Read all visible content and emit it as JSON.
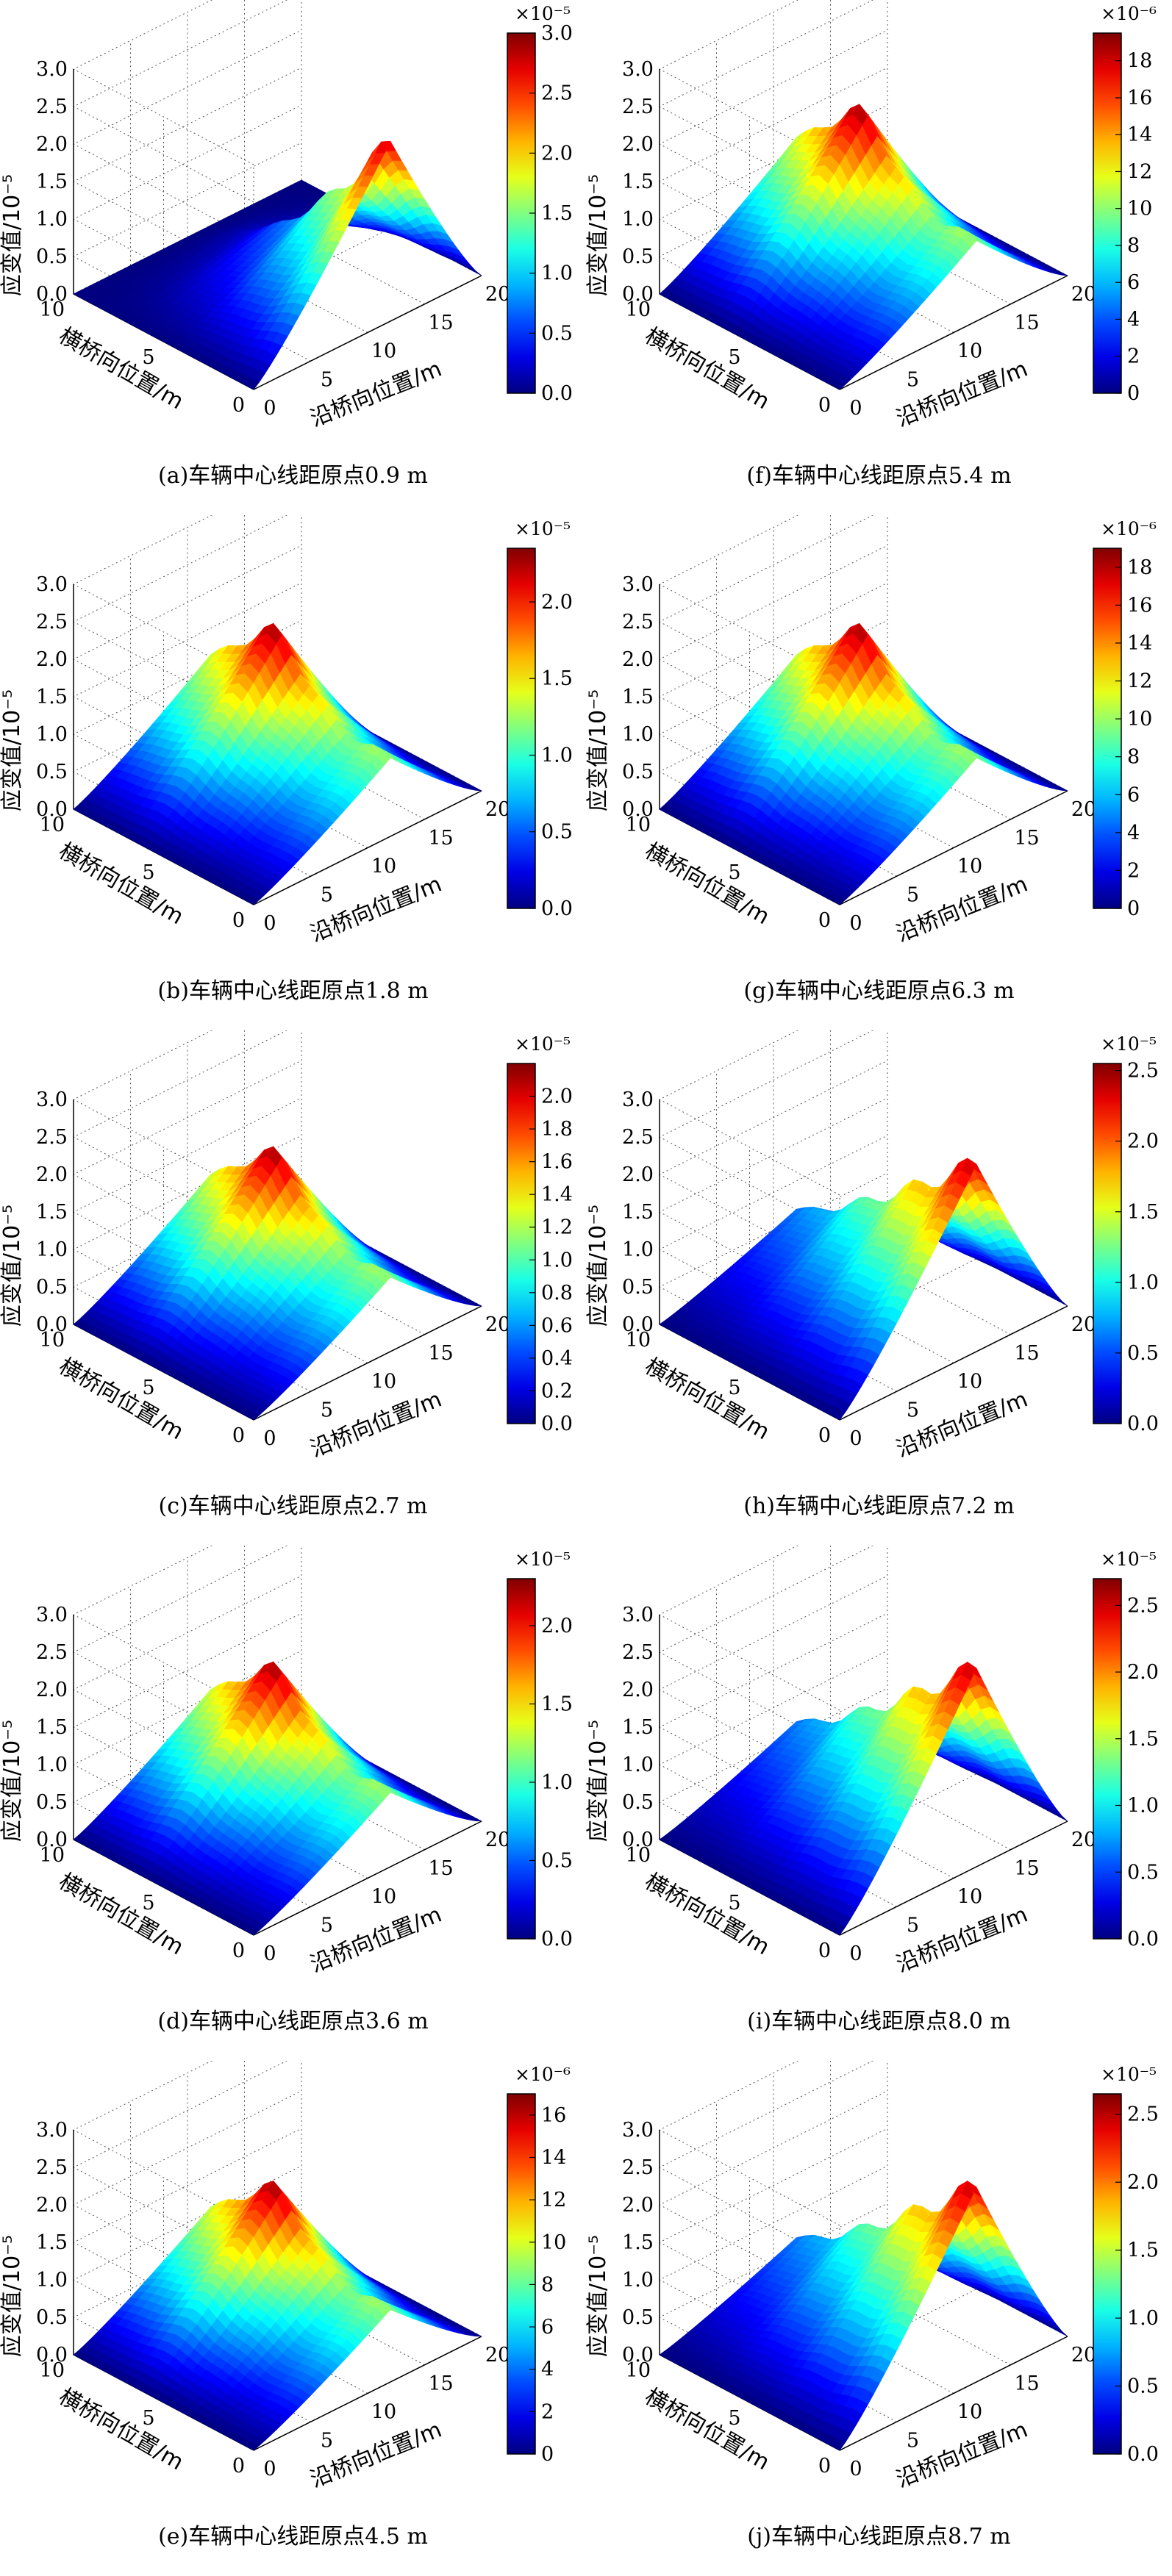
{
  "common": {
    "z_axis_label": "应变值/10⁻⁵",
    "x_axis_label": "沿桥向位置/m",
    "y_axis_label": "横桥向位置/m",
    "z_ticks": [
      "0.0",
      "0.5",
      "1.0",
      "1.5",
      "2.0",
      "2.5",
      "3.0"
    ],
    "x_ticks": [
      "0",
      "5",
      "10",
      "15",
      "20"
    ],
    "y_ticks": [
      "10",
      "5",
      "0"
    ],
    "colormap": [
      "#00008f",
      "#0000ff",
      "#00ffff",
      "#ffff00",
      "#ff0000",
      "#800000"
    ]
  },
  "chart_data": [
    {
      "id": "a",
      "type": "surface3d",
      "caption": "(a)车辆中心线距原点0.9 m",
      "colorbar": {
        "exponent": "×10⁻⁵",
        "ticks": [
          "0.0",
          "0.5",
          "1.0",
          "1.5",
          "2.0",
          "2.5",
          "3.0"
        ],
        "max": 3.0
      },
      "zlim": [
        0,
        3
      ],
      "xlim": [
        0,
        20
      ],
      "ylim": [
        0,
        10
      ],
      "peak_x": 12,
      "peak_value": 2.4
    },
    {
      "id": "b",
      "type": "surface3d",
      "caption": "(b)车辆中心线距原点1.8 m",
      "colorbar": {
        "exponent": "×10⁻⁵",
        "ticks": [
          "0.0",
          "0.5",
          "1.0",
          "1.5",
          "2.0"
        ],
        "max": 2.35
      },
      "zlim": [
        0,
        3
      ],
      "xlim": [
        0,
        20
      ],
      "ylim": [
        0,
        10
      ],
      "peak_x": 12,
      "peak_value": 1.9
    },
    {
      "id": "c",
      "type": "surface3d",
      "caption": "(c)车辆中心线距原点2.7 m",
      "colorbar": {
        "exponent": "×10⁻⁵",
        "ticks": [
          "0.0",
          "0.2",
          "0.4",
          "0.6",
          "0.8",
          "1.0",
          "1.2",
          "1.4",
          "1.6",
          "1.8",
          "2.0"
        ],
        "max": 2.2
      },
      "zlim": [
        0,
        3
      ],
      "xlim": [
        0,
        20
      ],
      "ylim": [
        0,
        10
      ],
      "peak_x": 12,
      "peak_value": 1.8
    },
    {
      "id": "d",
      "type": "surface3d",
      "caption": "(d)车辆中心线距原点3.6 m",
      "colorbar": {
        "exponent": "×10⁻⁵",
        "ticks": [
          "0.0",
          "0.5",
          "1.0",
          "1.5",
          "2.0"
        ],
        "max": 2.3
      },
      "zlim": [
        0,
        3
      ],
      "xlim": [
        0,
        20
      ],
      "ylim": [
        0,
        10
      ],
      "peak_x": 12,
      "peak_value": 1.8
    },
    {
      "id": "e",
      "type": "surface3d",
      "caption": "(e)车辆中心线距原点4.5 m",
      "colorbar": {
        "exponent": "×10⁻⁶",
        "ticks": [
          "0",
          "2",
          "4",
          "6",
          "8",
          "10",
          "12",
          "14",
          "16"
        ],
        "max": 17
      },
      "zlim": [
        0,
        3
      ],
      "xlim": [
        0,
        20
      ],
      "ylim": [
        0,
        10
      ],
      "peak_x": 12,
      "peak_value": 1.75
    },
    {
      "id": "f",
      "type": "surface3d",
      "caption": "(f)车辆中心线距原点5.4 m",
      "colorbar": {
        "exponent": "×10⁻⁶",
        "ticks": [
          "0",
          "2",
          "4",
          "6",
          "8",
          "10",
          "12",
          "14",
          "16",
          "18"
        ],
        "max": 19.5
      },
      "zlim": [
        0,
        3
      ],
      "xlim": [
        0,
        20
      ],
      "ylim": [
        0,
        10
      ],
      "peak_x": 12,
      "peak_value": 1.95
    },
    {
      "id": "g",
      "type": "surface3d",
      "caption": "(g)车辆中心线距原点6.3 m",
      "colorbar": {
        "exponent": "×10⁻⁶",
        "ticks": [
          "0",
          "2",
          "4",
          "6",
          "8",
          "10",
          "12",
          "14",
          "16",
          "18"
        ],
        "max": 19
      },
      "zlim": [
        0,
        3
      ],
      "xlim": [
        0,
        20
      ],
      "ylim": [
        0,
        10
      ],
      "peak_x": 12,
      "peak_value": 1.9
    },
    {
      "id": "h",
      "type": "surface3d",
      "caption": "(h)车辆中心线距原点7.2 m",
      "colorbar": {
        "exponent": "×10⁻⁵",
        "ticks": [
          "0.0",
          "0.5",
          "1.0",
          "1.5",
          "2.0",
          "2.5"
        ],
        "max": 2.55
      },
      "zlim": [
        0,
        3
      ],
      "xlim": [
        0,
        20
      ],
      "ylim": [
        0,
        10
      ],
      "peak_x": 12,
      "peak_value": 2.5
    },
    {
      "id": "i",
      "type": "surface3d",
      "caption": "(i)车辆中心线距原点8.0 m",
      "colorbar": {
        "exponent": "×10⁻⁵",
        "ticks": [
          "0.0",
          "0.5",
          "1.0",
          "1.5",
          "2.0",
          "2.5"
        ],
        "max": 2.7
      },
      "zlim": [
        0,
        3
      ],
      "xlim": [
        0,
        20
      ],
      "ylim": [
        0,
        10
      ],
      "peak_x": 12,
      "peak_value": 2.65
    },
    {
      "id": "j",
      "type": "surface3d",
      "caption": "(j)车辆中心线距原点8.7 m",
      "colorbar": {
        "exponent": "×10⁻⁵",
        "ticks": [
          "0.0",
          "0.5",
          "1.0",
          "1.5",
          "2.0",
          "2.5"
        ],
        "max": 2.65
      },
      "zlim": [
        0,
        3
      ],
      "xlim": [
        0,
        20
      ],
      "ylim": [
        0,
        10
      ],
      "peak_x": 12,
      "peak_value": 2.6
    }
  ]
}
